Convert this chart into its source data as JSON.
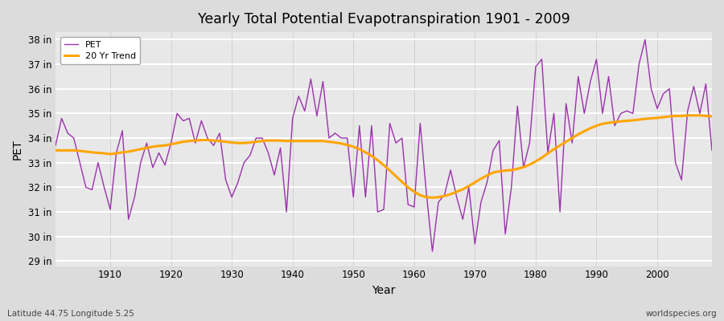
{
  "title": "Yearly Total Potential Evapotranspiration 1901 - 2009",
  "xlabel": "Year",
  "ylabel": "PET",
  "bg_color": "#e0e0e0",
  "plot_bg_color": "#e8e8e8",
  "pet_color": "#9933AA",
  "trend_color": "#FFA500",
  "lat_lon_text": "Latitude 44.75 Longitude 5.25",
  "source_text": "worldspecies.org",
  "ylim_min": 28.8,
  "ylim_max": 38.3,
  "yticks": [
    29,
    30,
    31,
    32,
    33,
    34,
    35,
    36,
    37,
    38
  ],
  "ytick_labels": [
    "29 in",
    "30 in",
    "31 in",
    "32 in",
    "33 in",
    "34 in",
    "35 in",
    "36 in",
    "37 in",
    "38 in"
  ],
  "years": [
    1901,
    1902,
    1903,
    1904,
    1905,
    1906,
    1907,
    1908,
    1909,
    1910,
    1911,
    1912,
    1913,
    1914,
    1915,
    1916,
    1917,
    1918,
    1919,
    1920,
    1921,
    1922,
    1923,
    1924,
    1925,
    1926,
    1927,
    1928,
    1929,
    1930,
    1931,
    1932,
    1933,
    1934,
    1935,
    1936,
    1937,
    1938,
    1939,
    1940,
    1941,
    1942,
    1943,
    1944,
    1945,
    1946,
    1947,
    1948,
    1949,
    1950,
    1951,
    1952,
    1953,
    1954,
    1955,
    1956,
    1957,
    1958,
    1959,
    1960,
    1961,
    1962,
    1963,
    1964,
    1965,
    1966,
    1967,
    1968,
    1969,
    1970,
    1971,
    1972,
    1973,
    1974,
    1975,
    1976,
    1977,
    1978,
    1979,
    1980,
    1981,
    1982,
    1983,
    1984,
    1985,
    1986,
    1987,
    1988,
    1989,
    1990,
    1991,
    1992,
    1993,
    1994,
    1995,
    1996,
    1997,
    1998,
    1999,
    2000,
    2001,
    2002,
    2003,
    2004,
    2005,
    2006,
    2007,
    2008,
    2009
  ],
  "pet": [
    33.7,
    34.8,
    34.2,
    34.0,
    33.0,
    32.0,
    31.9,
    33.0,
    32.0,
    31.1,
    33.4,
    34.3,
    30.7,
    31.6,
    33.0,
    33.8,
    32.8,
    33.4,
    32.9,
    33.8,
    35.0,
    34.7,
    34.8,
    33.8,
    34.7,
    34.0,
    33.7,
    34.2,
    32.3,
    31.6,
    32.2,
    33.0,
    33.3,
    34.0,
    34.0,
    33.4,
    32.5,
    33.6,
    31.0,
    34.8,
    35.7,
    35.1,
    36.4,
    34.9,
    36.3,
    34.0,
    34.2,
    34.0,
    34.0,
    31.6,
    34.5,
    31.6,
    34.5,
    31.0,
    31.1,
    34.6,
    33.8,
    34.0,
    31.3,
    31.2,
    34.6,
    31.8,
    29.4,
    31.4,
    31.7,
    32.7,
    31.6,
    30.7,
    32.0,
    29.7,
    31.4,
    32.2,
    33.5,
    33.9,
    30.1,
    32.0,
    35.3,
    32.8,
    33.8,
    36.9,
    37.2,
    33.4,
    35.0,
    31.0,
    35.4,
    33.8,
    36.5,
    35.0,
    36.3,
    37.2,
    35.0,
    36.5,
    34.5,
    35.0,
    35.1,
    35.0,
    37.0,
    38.0,
    36.0,
    35.2,
    35.8,
    36.0,
    33.0,
    32.3,
    35.1,
    36.1,
    35.0,
    36.2,
    33.5
  ],
  "trend": [
    33.5,
    33.5,
    33.5,
    33.5,
    33.48,
    33.45,
    33.42,
    33.4,
    33.38,
    33.35,
    33.38,
    33.42,
    33.45,
    33.5,
    33.55,
    33.6,
    33.65,
    33.68,
    33.7,
    33.75,
    33.8,
    33.85,
    33.88,
    33.9,
    33.92,
    33.92,
    33.9,
    33.88,
    33.85,
    33.82,
    33.8,
    33.8,
    33.82,
    33.85,
    33.88,
    33.9,
    33.9,
    33.9,
    33.88,
    33.88,
    33.88,
    33.88,
    33.88,
    33.88,
    33.88,
    33.85,
    33.82,
    33.78,
    33.72,
    33.65,
    33.55,
    33.42,
    33.28,
    33.1,
    32.9,
    32.68,
    32.45,
    32.22,
    32.0,
    31.82,
    31.68,
    31.6,
    31.58,
    31.6,
    31.65,
    31.72,
    31.82,
    31.92,
    32.05,
    32.2,
    32.35,
    32.48,
    32.6,
    32.65,
    32.68,
    32.7,
    32.75,
    32.82,
    32.92,
    33.05,
    33.2,
    33.38,
    33.55,
    33.7,
    33.85,
    34.0,
    34.15,
    34.28,
    34.4,
    34.5,
    34.58,
    34.62,
    34.65,
    34.68,
    34.7,
    34.72,
    34.75,
    34.78,
    34.8,
    34.82,
    34.85,
    34.88,
    34.9,
    34.9,
    34.92,
    34.92,
    34.92,
    34.9,
    34.88
  ]
}
